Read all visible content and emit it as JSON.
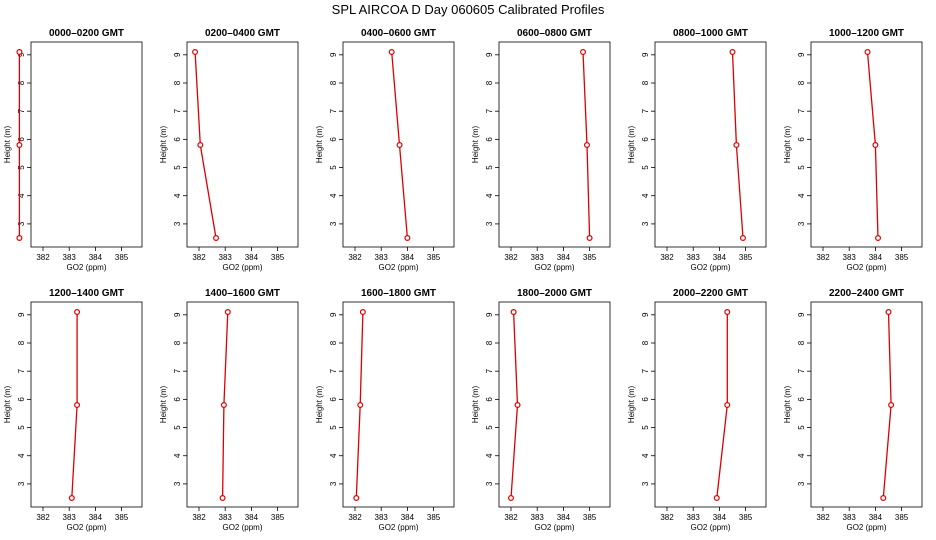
{
  "figure": {
    "title": "SPL AIRCOA D  Day 060605  Calibrated Profiles"
  },
  "colors": {
    "series": "#dd0000",
    "axis": "#000000"
  },
  "chart_data": [
    {
      "type": "line",
      "title": "0000–0200 GMT",
      "xlabel": "GO2 (ppm)",
      "ylabel": "Height (m)",
      "xlim": [
        381,
        385
      ],
      "ylim": [
        2.5,
        9.1
      ],
      "xticks": [
        382,
        383,
        384,
        385
      ],
      "yticks": [
        3,
        4,
        5,
        6,
        7,
        8,
        9
      ],
      "grid": false,
      "x": [
        381.1,
        381.1,
        381.1
      ],
      "y": [
        2.5,
        5.8,
        9.1
      ]
    },
    {
      "type": "line",
      "title": "0200–0400 GMT",
      "xlabel": "GO2 (ppm)",
      "ylabel": "Height (m)",
      "xlim": [
        381,
        385
      ],
      "ylim": [
        2.5,
        9.1
      ],
      "xticks": [
        382,
        383,
        384,
        385
      ],
      "yticks": [
        3,
        4,
        5,
        6,
        7,
        8,
        9
      ],
      "grid": false,
      "x": [
        382.65,
        382.05,
        381.85
      ],
      "y": [
        2.5,
        5.8,
        9.1
      ]
    },
    {
      "type": "line",
      "title": "0400–0600 GMT",
      "xlabel": "GO2 (ppm)",
      "ylabel": "Height (m)",
      "xlim": [
        381,
        385
      ],
      "ylim": [
        2.5,
        9.1
      ],
      "xticks": [
        382,
        383,
        384,
        385
      ],
      "yticks": [
        3,
        4,
        5,
        6,
        7,
        8,
        9
      ],
      "grid": false,
      "x": [
        384.0,
        383.7,
        383.4
      ],
      "y": [
        2.5,
        5.8,
        9.1
      ]
    },
    {
      "type": "line",
      "title": "0600–0800 GMT",
      "xlabel": "GO2 (ppm)",
      "ylabel": "Height (m)",
      "xlim": [
        381,
        385
      ],
      "ylim": [
        2.5,
        9.1
      ],
      "xticks": [
        382,
        383,
        384,
        385
      ],
      "yticks": [
        3,
        4,
        5,
        6,
        7,
        8,
        9
      ],
      "grid": false,
      "x": [
        385.0,
        384.9,
        384.75
      ],
      "y": [
        2.5,
        5.8,
        9.1
      ]
    },
    {
      "type": "line",
      "title": "0800–1000 GMT",
      "xlabel": "GO2 (ppm)",
      "ylabel": "Height (m)",
      "xlim": [
        381,
        385
      ],
      "ylim": [
        2.5,
        9.1
      ],
      "xticks": [
        382,
        383,
        384,
        385
      ],
      "yticks": [
        3,
        4,
        5,
        6,
        7,
        8,
        9
      ],
      "grid": false,
      "x": [
        384.9,
        384.65,
        384.5
      ],
      "y": [
        2.5,
        5.8,
        9.1
      ]
    },
    {
      "type": "line",
      "title": "1000–1200 GMT",
      "xlabel": "GO2 (ppm)",
      "ylabel": "Height (m)",
      "xlim": [
        381,
        385
      ],
      "ylim": [
        2.5,
        9.1
      ],
      "xticks": [
        382,
        383,
        384,
        385
      ],
      "yticks": [
        3,
        4,
        5,
        6,
        7,
        8,
        9
      ],
      "grid": false,
      "x": [
        384.1,
        384.0,
        383.7
      ],
      "y": [
        2.5,
        5.8,
        9.1
      ]
    },
    {
      "type": "line",
      "title": "1200–1400 GMT",
      "xlabel": "GO2 (ppm)",
      "ylabel": "Height (m)",
      "xlim": [
        381,
        385
      ],
      "ylim": [
        2.5,
        9.1
      ],
      "xticks": [
        382,
        383,
        384,
        385
      ],
      "yticks": [
        3,
        4,
        5,
        6,
        7,
        8,
        9
      ],
      "grid": false,
      "x": [
        383.1,
        383.3,
        383.3
      ],
      "y": [
        2.5,
        5.8,
        9.1
      ]
    },
    {
      "type": "line",
      "title": "1400–1600 GMT",
      "xlabel": "GO2 (ppm)",
      "ylabel": "Height (m)",
      "xlim": [
        381,
        385
      ],
      "ylim": [
        2.5,
        9.1
      ],
      "xticks": [
        382,
        383,
        384,
        385
      ],
      "yticks": [
        3,
        4,
        5,
        6,
        7,
        8,
        9
      ],
      "grid": false,
      "x": [
        382.9,
        382.95,
        383.1
      ],
      "y": [
        2.5,
        5.8,
        9.1
      ]
    },
    {
      "type": "line",
      "title": "1600–1800 GMT",
      "xlabel": "GO2 (ppm)",
      "ylabel": "Height (m)",
      "xlim": [
        381,
        385
      ],
      "ylim": [
        2.5,
        9.1
      ],
      "xticks": [
        382,
        383,
        384,
        385
      ],
      "yticks": [
        3,
        4,
        5,
        6,
        7,
        8,
        9
      ],
      "grid": false,
      "x": [
        382.05,
        382.2,
        382.3
      ],
      "y": [
        2.5,
        5.8,
        9.1
      ]
    },
    {
      "type": "line",
      "title": "1800–2000 GMT",
      "xlabel": "GO2 (ppm)",
      "ylabel": "Height (m)",
      "xlim": [
        381,
        385
      ],
      "ylim": [
        2.5,
        9.1
      ],
      "xticks": [
        382,
        383,
        384,
        385
      ],
      "yticks": [
        3,
        4,
        5,
        6,
        7,
        8,
        9
      ],
      "grid": false,
      "x": [
        382.0,
        382.25,
        382.1
      ],
      "y": [
        2.5,
        5.8,
        9.1
      ]
    },
    {
      "type": "line",
      "title": "2000–2200 GMT",
      "xlabel": "GO2 (ppm)",
      "ylabel": "Height (m)",
      "xlim": [
        381,
        385
      ],
      "ylim": [
        2.5,
        9.1
      ],
      "xticks": [
        382,
        383,
        384,
        385
      ],
      "yticks": [
        3,
        4,
        5,
        6,
        7,
        8,
        9
      ],
      "grid": false,
      "x": [
        383.9,
        384.3,
        384.3
      ],
      "y": [
        2.5,
        5.8,
        9.1
      ]
    },
    {
      "type": "line",
      "title": "2200–2400 GMT",
      "xlabel": "GO2 (ppm)",
      "ylabel": "Height (m)",
      "xlim": [
        381,
        385
      ],
      "ylim": [
        2.5,
        9.1
      ],
      "xticks": [
        382,
        383,
        384,
        385
      ],
      "yticks": [
        3,
        4,
        5,
        6,
        7,
        8,
        9
      ],
      "grid": false,
      "x": [
        384.3,
        384.6,
        384.5
      ],
      "y": [
        2.5,
        5.8,
        9.1
      ]
    }
  ]
}
